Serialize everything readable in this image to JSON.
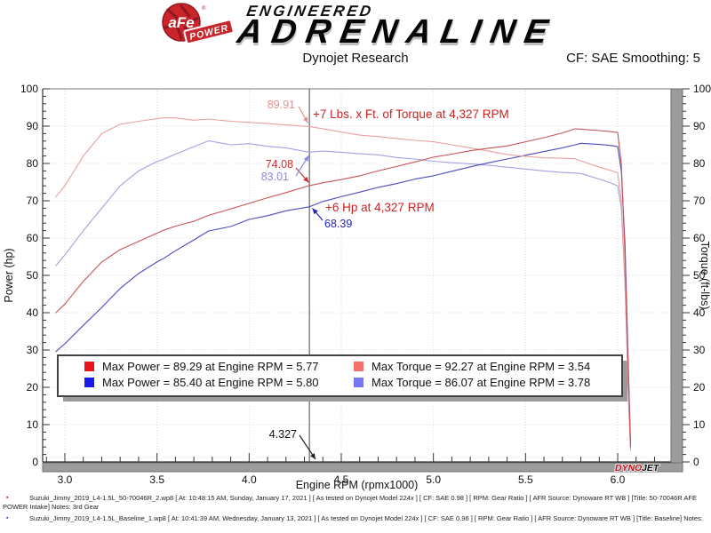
{
  "header": {
    "badge_main": "aFe",
    "badge_sub": "POWER",
    "brand_top": "ENGINEERED",
    "brand_bottom": "ADRENALINE"
  },
  "title_bar": {
    "title": "Dynojet Research",
    "cf_label": "CF: SAE Smoothing: 5"
  },
  "chart_data": {
    "type": "line",
    "title": "Dynojet Research",
    "xlabel": "Engine RPM (rpmx1000)",
    "ylabel_left": "Power (hp)",
    "ylabel_right": "Torque (ft-lbs)",
    "x_range": [
      2.88,
      6.29
    ],
    "x_major_ticks": [
      3.0,
      3.5,
      4.0,
      4.5,
      5.0,
      5.5,
      6.0
    ],
    "x_minor_step": 0.1,
    "y_range": [
      0,
      100
    ],
    "y_major_step": 10,
    "y_minor_step": 2,
    "grid": true,
    "x": [
      2.95,
      3.0,
      3.1,
      3.2,
      3.3,
      3.4,
      3.5,
      3.54,
      3.6,
      3.7,
      3.78,
      3.9,
      4.0,
      4.1,
      4.2,
      4.327,
      4.4,
      4.5,
      4.6,
      4.7,
      4.8,
      4.9,
      5.0,
      5.1,
      5.2,
      5.3,
      5.4,
      5.5,
      5.6,
      5.7,
      5.77,
      5.8,
      5.9,
      5.95,
      6.0,
      6.02,
      6.04,
      6.06,
      6.07
    ],
    "series": [
      {
        "key": "torque_baseline",
        "axis": "right",
        "color": "#a2a2e2",
        "max": {
          "value": 86.07,
          "rpm": 3.78
        },
        "values": [
          52.5,
          55.5,
          62,
          68,
          74,
          78,
          80.5,
          81.2,
          82.5,
          84.5,
          86.07,
          85.0,
          85.3,
          84.6,
          84.2,
          83.01,
          83.3,
          83.0,
          82.6,
          82.3,
          81.6,
          81.2,
          80.6,
          80.2,
          79.9,
          79.5,
          79.0,
          78.5,
          78.0,
          77.6,
          77.4,
          77.3,
          75.8,
          75.0,
          74.0,
          68.0,
          47.0,
          16.0,
          3.0
        ]
      },
      {
        "key": "power_baseline",
        "axis": "left",
        "color": "#4c4cc0",
        "max": {
          "value": 85.4,
          "rpm": 5.8
        },
        "values": [
          29.5,
          31.7,
          36.6,
          41.4,
          46.5,
          50.5,
          53.6,
          54.7,
          56.6,
          59.5,
          61.9,
          63.1,
          65.0,
          66.0,
          67.3,
          68.39,
          69.8,
          71.1,
          72.3,
          73.6,
          74.6,
          75.8,
          76.7,
          77.9,
          79.1,
          80.2,
          81.2,
          82.2,
          83.2,
          84.2,
          85.0,
          85.4,
          85.1,
          84.9,
          84.5,
          78.0,
          58.0,
          22.0,
          5.0
        ]
      },
      {
        "key": "torque_intake",
        "axis": "right",
        "color": "#e9a0a0",
        "max": {
          "value": 92.27,
          "rpm": 3.54
        },
        "values": [
          71,
          74,
          82,
          88,
          90.5,
          91.3,
          92.0,
          92.27,
          92.2,
          91.6,
          91.9,
          91.3,
          91.0,
          90.7,
          90.3,
          89.91,
          89.3,
          88.4,
          87.6,
          87.2,
          86.7,
          86.2,
          85.8,
          85.0,
          84.2,
          83.3,
          82.4,
          81.9,
          81.5,
          81.4,
          81.27,
          80.7,
          79.0,
          78.3,
          77.5,
          70.0,
          48.0,
          15.0,
          3.0
        ]
      },
      {
        "key": "power_intake",
        "axis": "left",
        "color": "#c85454",
        "max": {
          "value": 89.29,
          "rpm": 5.77
        },
        "values": [
          39.9,
          42.3,
          48.4,
          53.6,
          56.9,
          59.1,
          61.3,
          62.2,
          63.2,
          64.5,
          66.1,
          67.8,
          69.3,
          70.8,
          72.2,
          74.08,
          74.8,
          75.7,
          76.7,
          78.0,
          79.2,
          80.4,
          81.7,
          82.5,
          83.4,
          84.1,
          84.7,
          85.8,
          86.9,
          88.2,
          89.29,
          89.2,
          88.8,
          88.6,
          88.3,
          80.0,
          55.0,
          20.0,
          4.0
        ]
      }
    ],
    "legend": {
      "items": [
        {
          "swatch": "#e8141c",
          "label": "Max Power = 89.29 at Engine RPM = 5.77"
        },
        {
          "swatch": "#1b1be8",
          "label": "Max Power = 85.40 at Engine RPM = 5.80"
        },
        {
          "swatch": "#f46f6c",
          "label": "Max Torque = 92.27 at Engine RPM = 3.54"
        },
        {
          "swatch": "#7776f3",
          "label": "Max Torque = 86.07 at Engine RPM = 3.78"
        }
      ]
    },
    "cursor": {
      "rpm": 4.327,
      "label": "4.327"
    },
    "annotations": {
      "torque_gain_text": "+7 Lbs. x Ft. of Torque at 4,327 RPM",
      "hp_gain_text": "+6 Hp at 4,327 RPM",
      "values": {
        "torque_intake": "89.91",
        "power_intake": "74.08",
        "torque_baseline": "83.01",
        "power_baseline": "68.39"
      },
      "value_colors": {
        "torque_intake": "#e59090",
        "power_intake": "#cc3030",
        "torque_baseline": "#8c8ce0",
        "power_baseline": "#2424bb"
      },
      "gain_color": "#cc2222"
    },
    "watermark": {
      "part1": "DYNO",
      "part2": "JET"
    }
  },
  "footnotes": [
    {
      "bullet": "▪",
      "text": "Suzuki_Jimny_2019_L4-1.5L_50-70046R_2.wp8 [ At: 10:48:15 AM, Sunday, January 17, 2021 ] [ As tested on Dynojet Model 224x ] [ CF: SAE 0.98 ] [ RPM: Gear Ratio ] [ AFR Source: Dynoware RT WB ] [Title: 50-70046R AFE POWER Intake]  Notes: 3rd Gear"
    },
    {
      "bullet": "▪",
      "text": "Suzuki_Jimny_2019_L4-1.5L_Baseline_1.wp8 [ At: 10:41:39 AM, Wednesday, January 13, 2021 ] [ As tested on Dynojet Model 224x ] [ CF: SAE 0.96 ] [ RPM: Gear Ratio ] [ AFR Source: Dynoware RT WB ] [Title: Baseline]  Notes:"
    }
  ]
}
